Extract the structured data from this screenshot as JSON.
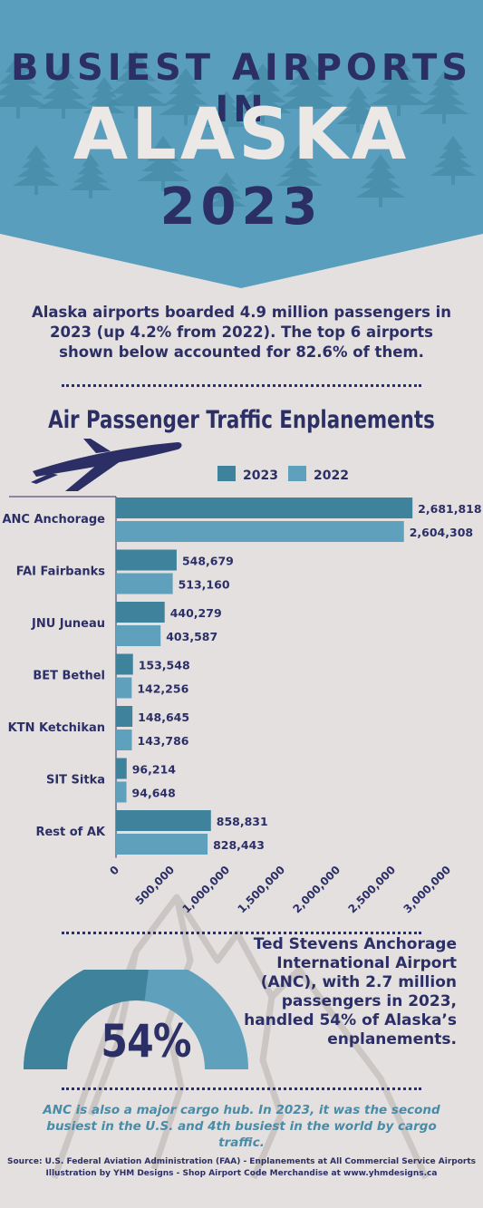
{
  "header": {
    "line1": "BUSIEST AIRPORTS IN",
    "line2": "ALASKA",
    "line3": "2023"
  },
  "intro": "Alaska airports boarded 4.9 million passengers in 2023 (up 4.2% from 2022). The top 6 airports shown below accounted for 82.6% of them.",
  "chart_data": {
    "type": "bar",
    "orientation": "horizontal",
    "title": "Air Passenger Traffic Enplanements",
    "categories": [
      "ANC Anchorage",
      "FAI Fairbanks",
      "JNU Juneau",
      "BET Bethel",
      "KTN Ketchikan",
      "SIT Sitka",
      "Rest of AK"
    ],
    "series": [
      {
        "name": "2023",
        "values": [
          2681818,
          548679,
          440279,
          153548,
          148645,
          96214,
          858831
        ],
        "labels": [
          "2,681,818",
          "548,679",
          "440,279",
          "153,548",
          "148,645",
          "96,214",
          "858,831"
        ]
      },
      {
        "name": "2022",
        "values": [
          2604308,
          513160,
          403587,
          142256,
          143786,
          94648,
          828443
        ],
        "labels": [
          "2,604,308",
          "513,160",
          "403,587",
          "142,256",
          "143,786",
          "94,648",
          "828,443"
        ]
      }
    ],
    "xlim": [
      0,
      3000000
    ],
    "xticks": [
      0,
      500000,
      1000000,
      1500000,
      2000000,
      2500000,
      3000000
    ],
    "xtick_labels": [
      "0",
      "500,000",
      "1,000,000",
      "1,500,000",
      "2,000,000",
      "2,500,000",
      "3,000,000"
    ],
    "legend_position": "top",
    "grid": false
  },
  "highlight": {
    "percent": "54%",
    "percent_value": 0.54,
    "text": "Ted Stevens Anchorage International Airport (ANC), with 2.7 million passengers in 2023, handled 54% of Alaska’s enplanements."
  },
  "cargo_note": "ANC is also a major cargo hub. In 2023, it was the second busiest in the U.S. and 4th busiest in the world by cargo traffic.",
  "source": {
    "line1": "Source: U.S. Federal Aviation Administration (FAA) - Enplanements at All Commercial Service Airports",
    "line2": "Illustration by YHM Designs - Shop Airport Code Merchandise at www.yhmdesigns.ca"
  },
  "colors": {
    "series_2023": "#3f829c",
    "series_2022": "#5fa0bd",
    "navy": "#2c2f66",
    "header_bg": "#5a9ebd",
    "tree": "#468aa6",
    "page_bg": "#e4e0df"
  },
  "icons": [
    "airplane-icon",
    "mountain-illustration",
    "pine-tree-icon"
  ]
}
